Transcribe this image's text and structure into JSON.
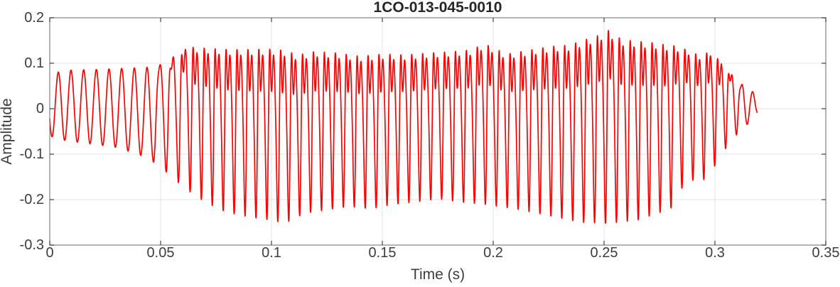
{
  "chart_data": {
    "type": "line",
    "title": "1CO-013-045-0010",
    "xlabel": "Time (s)",
    "ylabel": "Amplitude",
    "xlim": [
      0,
      0.35
    ],
    "ylim": [
      -0.3,
      0.2
    ],
    "xticks": [
      0,
      0.05,
      0.1,
      0.15,
      0.2,
      0.25,
      0.3,
      0.35
    ],
    "xtick_labels": [
      "0",
      "0.05",
      "0.1",
      "0.15",
      "0.2",
      "0.25",
      "0.3",
      "0.35"
    ],
    "yticks": [
      0.2,
      0.1,
      0,
      -0.1,
      -0.2,
      -0.3
    ],
    "ytick_labels": [
      "0.2",
      "0.1",
      "0",
      "-0.1",
      "-0.2",
      "-0.3"
    ],
    "grid": true,
    "legend": "none",
    "colors": {
      "line": "#ff0000",
      "grid": "#e3e3e3",
      "box": "#8c8c8c",
      "tick": "#444444",
      "label_text": "#3d3d3d",
      "title_text": "#262626",
      "background": "#ffffff"
    },
    "signal": {
      "name": "waveform",
      "t_start": 0,
      "t_end": 0.319,
      "freq_hz_start": 175,
      "freq_hz_main": 203,
      "freq_ramp_interval": [
        0.05,
        0.07
      ],
      "phase0": 3.6,
      "waveshape": {
        "c2": 0.62,
        "c3": 0.2,
        "phi3": 1.6
      },
      "harmonic_ramp_in": [
        0.045,
        0.065
      ],
      "harmonic_ramp_out": [
        0.302,
        0.315
      ],
      "envelope_upper": [
        [
          0,
          0.075
        ],
        [
          0.005,
          0.082
        ],
        [
          0.01,
          0.085
        ],
        [
          0.02,
          0.086
        ],
        [
          0.03,
          0.088
        ],
        [
          0.04,
          0.09
        ],
        [
          0.048,
          0.092
        ],
        [
          0.054,
          0.108
        ],
        [
          0.058,
          0.122
        ],
        [
          0.063,
          0.135
        ],
        [
          0.07,
          0.133
        ],
        [
          0.08,
          0.13
        ],
        [
          0.09,
          0.13
        ],
        [
          0.1,
          0.131
        ],
        [
          0.106,
          0.128
        ],
        [
          0.112,
          0.118
        ],
        [
          0.12,
          0.126
        ],
        [
          0.13,
          0.122
        ],
        [
          0.14,
          0.115
        ],
        [
          0.15,
          0.12
        ],
        [
          0.16,
          0.118
        ],
        [
          0.17,
          0.122
        ],
        [
          0.18,
          0.125
        ],
        [
          0.19,
          0.129
        ],
        [
          0.196,
          0.143
        ],
        [
          0.206,
          0.12
        ],
        [
          0.212,
          0.125
        ],
        [
          0.22,
          0.132
        ],
        [
          0.228,
          0.138
        ],
        [
          0.235,
          0.14
        ],
        [
          0.24,
          0.15
        ],
        [
          0.246,
          0.158
        ],
        [
          0.252,
          0.172
        ],
        [
          0.258,
          0.152
        ],
        [
          0.265,
          0.148
        ],
        [
          0.272,
          0.145
        ],
        [
          0.278,
          0.14
        ],
        [
          0.282,
          0.138
        ],
        [
          0.287,
          0.13
        ],
        [
          0.293,
          0.117
        ],
        [
          0.298,
          0.125
        ],
        [
          0.304,
          0.097
        ],
        [
          0.31,
          0.06
        ],
        [
          0.316,
          0.042
        ],
        [
          0.319,
          0.028
        ]
      ],
      "envelope_lower": [
        [
          0,
          -0.06
        ],
        [
          0.005,
          -0.068
        ],
        [
          0.01,
          -0.072
        ],
        [
          0.02,
          -0.078
        ],
        [
          0.03,
          -0.085
        ],
        [
          0.04,
          -0.1
        ],
        [
          0.048,
          -0.12
        ],
        [
          0.055,
          -0.15
        ],
        [
          0.06,
          -0.17
        ],
        [
          0.065,
          -0.19
        ],
        [
          0.072,
          -0.21
        ],
        [
          0.08,
          -0.228
        ],
        [
          0.09,
          -0.238
        ],
        [
          0.1,
          -0.245
        ],
        [
          0.106,
          -0.252
        ],
        [
          0.115,
          -0.23
        ],
        [
          0.125,
          -0.222
        ],
        [
          0.135,
          -0.215
        ],
        [
          0.145,
          -0.22
        ],
        [
          0.155,
          -0.21
        ],
        [
          0.165,
          -0.205
        ],
        [
          0.175,
          -0.198
        ],
        [
          0.185,
          -0.205
        ],
        [
          0.196,
          -0.21
        ],
        [
          0.21,
          -0.22
        ],
        [
          0.225,
          -0.235
        ],
        [
          0.24,
          -0.25
        ],
        [
          0.252,
          -0.252
        ],
        [
          0.265,
          -0.245
        ],
        [
          0.28,
          -0.22
        ],
        [
          0.286,
          -0.167
        ],
        [
          0.291,
          -0.155
        ],
        [
          0.296,
          -0.156
        ],
        [
          0.302,
          -0.11
        ],
        [
          0.307,
          -0.07
        ],
        [
          0.313,
          -0.042
        ],
        [
          0.319,
          -0.012
        ]
      ]
    }
  }
}
